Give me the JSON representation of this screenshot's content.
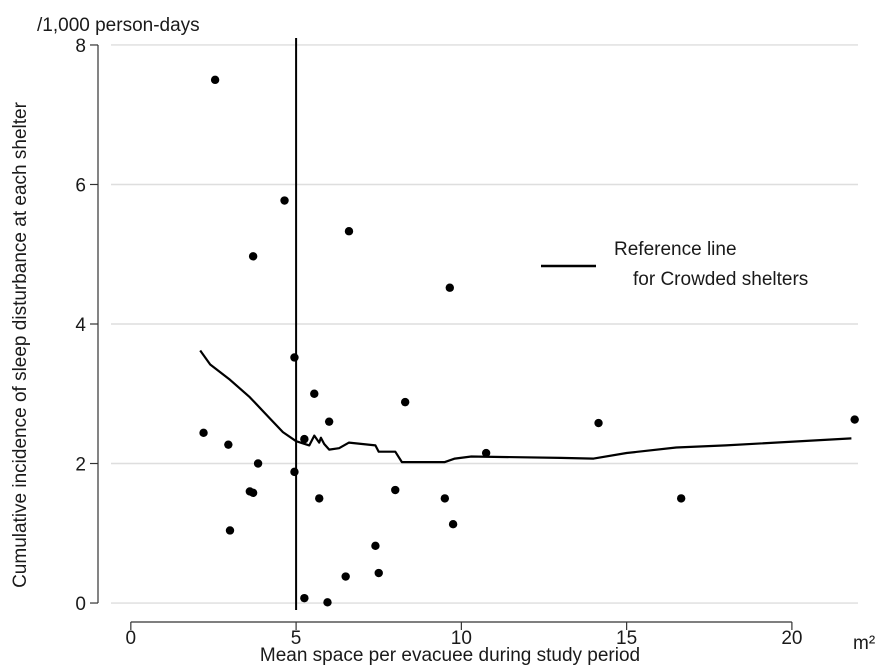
{
  "chart_data": {
    "type": "scatter",
    "ylabel": "Cumulative incidence of sleep disturbance at each shelter",
    "xlabel": "Mean space per evacuee during study period",
    "y_unit": "/1,000 person-days",
    "x_unit": "m²",
    "xlim": [
      -0.6,
      22
    ],
    "ylim": [
      -0.1,
      8.1
    ],
    "x_ticks": [
      0,
      5,
      10,
      15,
      20
    ],
    "y_ticks": [
      0,
      2,
      4,
      6,
      8
    ],
    "grid": "horizontal",
    "legend_position": "right",
    "colors": {
      "points": "#000000",
      "line": "#000000",
      "grid": "#dedede"
    },
    "series": [
      {
        "type": "scatter",
        "points": [
          [
            2.55,
            7.5
          ],
          [
            4.65,
            5.77
          ],
          [
            6.6,
            5.33
          ],
          [
            3.7,
            4.97
          ],
          [
            9.65,
            4.52
          ],
          [
            4.95,
            3.52
          ],
          [
            5.55,
            3.0
          ],
          [
            8.3,
            2.88
          ],
          [
            6.0,
            2.6
          ],
          [
            14.15,
            2.58
          ],
          [
            21.9,
            2.63
          ],
          [
            5.25,
            2.35
          ],
          [
            2.2,
            2.44
          ],
          [
            2.95,
            2.27
          ],
          [
            10.75,
            2.15
          ],
          [
            3.85,
            2.0
          ],
          [
            4.95,
            1.88
          ],
          [
            8.0,
            1.62
          ],
          [
            3.6,
            1.6
          ],
          [
            3.7,
            1.58
          ],
          [
            5.7,
            1.5
          ],
          [
            9.5,
            1.5
          ],
          [
            16.65,
            1.5
          ],
          [
            3.0,
            1.04
          ],
          [
            9.75,
            1.13
          ],
          [
            7.4,
            0.82
          ],
          [
            7.5,
            0.43
          ],
          [
            6.5,
            0.38
          ],
          [
            5.25,
            0.07
          ],
          [
            5.95,
            0.01
          ]
        ]
      },
      {
        "type": "line",
        "name": "Reference line for Crowded shelters",
        "points": [
          [
            2.1,
            3.62
          ],
          [
            2.4,
            3.42
          ],
          [
            3.0,
            3.2
          ],
          [
            3.6,
            2.95
          ],
          [
            4.2,
            2.65
          ],
          [
            4.6,
            2.45
          ],
          [
            5.0,
            2.32
          ],
          [
            5.4,
            2.26
          ],
          [
            5.55,
            2.4
          ],
          [
            5.7,
            2.3
          ],
          [
            5.75,
            2.37
          ],
          [
            5.85,
            2.28
          ],
          [
            6.0,
            2.2
          ],
          [
            6.3,
            2.22
          ],
          [
            6.6,
            2.3
          ],
          [
            7.0,
            2.28
          ],
          [
            7.4,
            2.26
          ],
          [
            7.5,
            2.17
          ],
          [
            8.0,
            2.17
          ],
          [
            8.2,
            2.02
          ],
          [
            9.5,
            2.02
          ],
          [
            9.8,
            2.07
          ],
          [
            10.3,
            2.1
          ],
          [
            13.0,
            2.08
          ],
          [
            14.0,
            2.07
          ],
          [
            15.0,
            2.15
          ],
          [
            16.5,
            2.23
          ],
          [
            18.0,
            2.26
          ],
          [
            21.8,
            2.36
          ]
        ]
      },
      {
        "type": "vline",
        "x": 5
      }
    ],
    "legend": {
      "line1": "Reference line",
      "line2": "for Crowded shelters"
    }
  }
}
